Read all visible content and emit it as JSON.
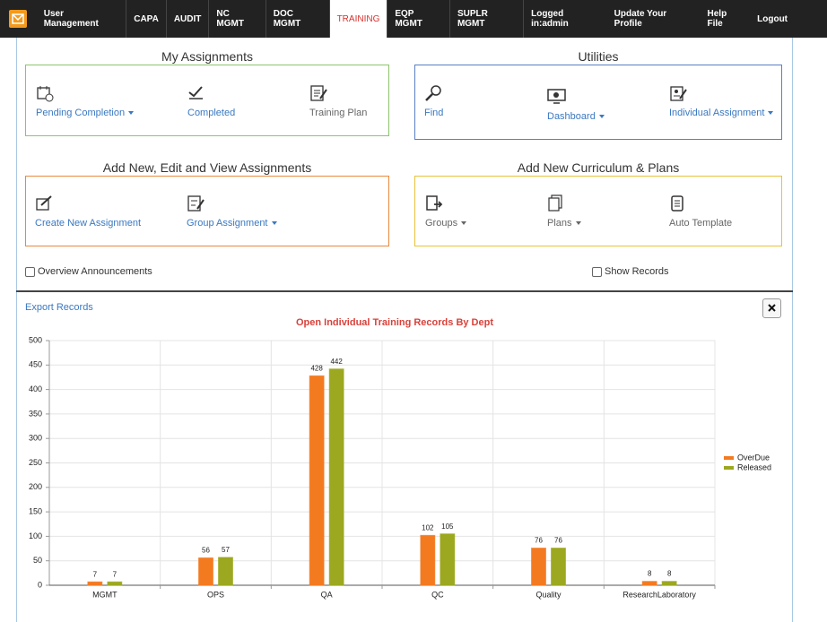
{
  "nav": {
    "items": [
      "User Management",
      "CAPA",
      "AUDIT",
      "NC MGMT",
      "DOC MGMT",
      "TRAINING",
      "EQP MGMT",
      "SUPLR MGMT"
    ],
    "user_items": [
      "Logged in:admin",
      "Update Your Profile",
      "Help File",
      "Logout"
    ]
  },
  "panels": [
    {
      "title": "My Assignments",
      "items": [
        "Pending Completion",
        "Completed",
        "Training Plan"
      ]
    },
    {
      "title": "Utilities",
      "items": [
        "Find",
        "Dashboard",
        "Individual Assignment"
      ]
    },
    {
      "title": "Add New, Edit and View Assignments",
      "items": [
        "Create New Assignment",
        "Group Assignment"
      ]
    },
    {
      "title": "Add New Curriculum & Plans",
      "items": [
        "Groups",
        "Plans",
        "Auto Template"
      ]
    }
  ],
  "checkboxes": [
    "Overview Announcements",
    "Show Records"
  ],
  "export_link": "Export Records",
  "chart_data": {
    "type": "bar",
    "title": "Open Individual Training Records By Dept",
    "categories": [
      "MGMT",
      "OPS",
      "QA",
      "QC",
      "Quality",
      "ResearchLaboratory"
    ],
    "series": [
      {
        "name": "OverDue",
        "color": "#f47a20",
        "values": [
          7,
          56,
          428,
          102,
          76,
          8
        ]
      },
      {
        "name": "Released",
        "color": "#9ca81f",
        "values": [
          7,
          57,
          442,
          105,
          76,
          8
        ]
      }
    ],
    "ylim": [
      0,
      500
    ],
    "yticks": [
      0,
      50,
      100,
      150,
      200,
      250,
      300,
      350,
      400,
      450,
      500
    ],
    "grid": true,
    "legend": "right"
  }
}
